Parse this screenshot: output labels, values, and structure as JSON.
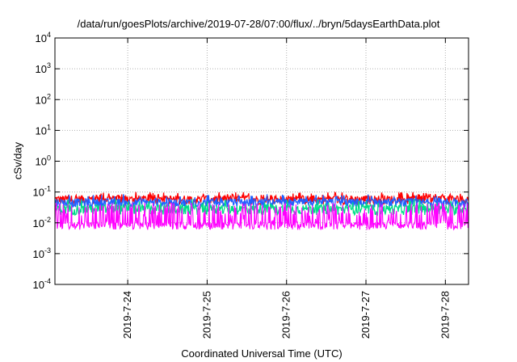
{
  "chart_data": {
    "type": "line",
    "title": "/data/run/goesPlots/archive/2019-07-28/07:00/flux/../bryn/5daysEarthData.plot",
    "xlabel": "Coordinated Universal Time (UTC)",
    "ylabel": "cSv/day",
    "yscale": "log",
    "ylim": [
      0.0001,
      10000
    ],
    "xlim": [
      "2019-07-23 02:00",
      "2019-07-28 07:00"
    ],
    "grid": true,
    "x_ticks": [
      "2019-7-24",
      "2019-7-25",
      "2019-7-26",
      "2019-7-27",
      "2019-7-28"
    ],
    "y_ticks": [
      {
        "base": "10",
        "exp": "-4",
        "value": 0.0001
      },
      {
        "base": "10",
        "exp": "-3",
        "value": 0.001
      },
      {
        "base": "10",
        "exp": "-2",
        "value": 0.01
      },
      {
        "base": "10",
        "exp": "-1",
        "value": 0.1
      },
      {
        "base": "10",
        "exp": "0",
        "value": 1
      },
      {
        "base": "10",
        "exp": "1",
        "value": 10
      },
      {
        "base": "10",
        "exp": "2",
        "value": 100
      },
      {
        "base": "10",
        "exp": "3",
        "value": 1000
      },
      {
        "base": "10",
        "exp": "4",
        "value": 10000
      }
    ],
    "series": [
      {
        "color": "#ff0000",
        "base": 0.052,
        "noise_low": 0.75,
        "noise_high": 1.5,
        "spike_prob": 0.14,
        "spike_to": 0.1
      },
      {
        "color": "#2060ff",
        "base": 0.045,
        "noise_low": 0.7,
        "noise_high": 1.35,
        "spike_prob": 0.1,
        "spike_to": 0.085
      },
      {
        "color": "#00dd88",
        "base": 0.03,
        "noise_low": 0.6,
        "noise_high": 1.3,
        "spike_prob": 0.06,
        "spike_to": 0.06
      },
      {
        "color": "#ff00ff",
        "base": 0.0085,
        "noise_low": 0.7,
        "noise_high": 1.2,
        "spike_prob": 0.35,
        "spike_to": 0.045
      }
    ]
  }
}
